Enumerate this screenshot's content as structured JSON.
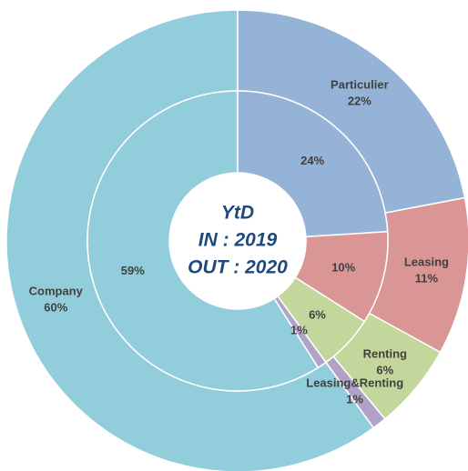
{
  "chart_data": {
    "type": "donut",
    "title": "YtD",
    "categories": [
      "Particulier",
      "Leasing",
      "Renting",
      "Leasing&Renting",
      "Company"
    ],
    "colors": [
      "#95b3d7",
      "#d99694",
      "#c3d69b",
      "#b3a2c7",
      "#92cddc"
    ],
    "series": [
      {
        "name": "IN : 2019",
        "values": [
          24,
          10,
          6,
          1,
          59
        ],
        "value_labels": [
          "24%",
          "10%",
          "6%",
          "1%",
          "59%"
        ]
      },
      {
        "name": "OUT : 2020",
        "values": [
          22,
          11,
          6,
          1,
          60
        ],
        "value_labels": [
          "22%",
          "11%",
          "6%",
          "1%",
          "60%"
        ]
      }
    ]
  }
}
